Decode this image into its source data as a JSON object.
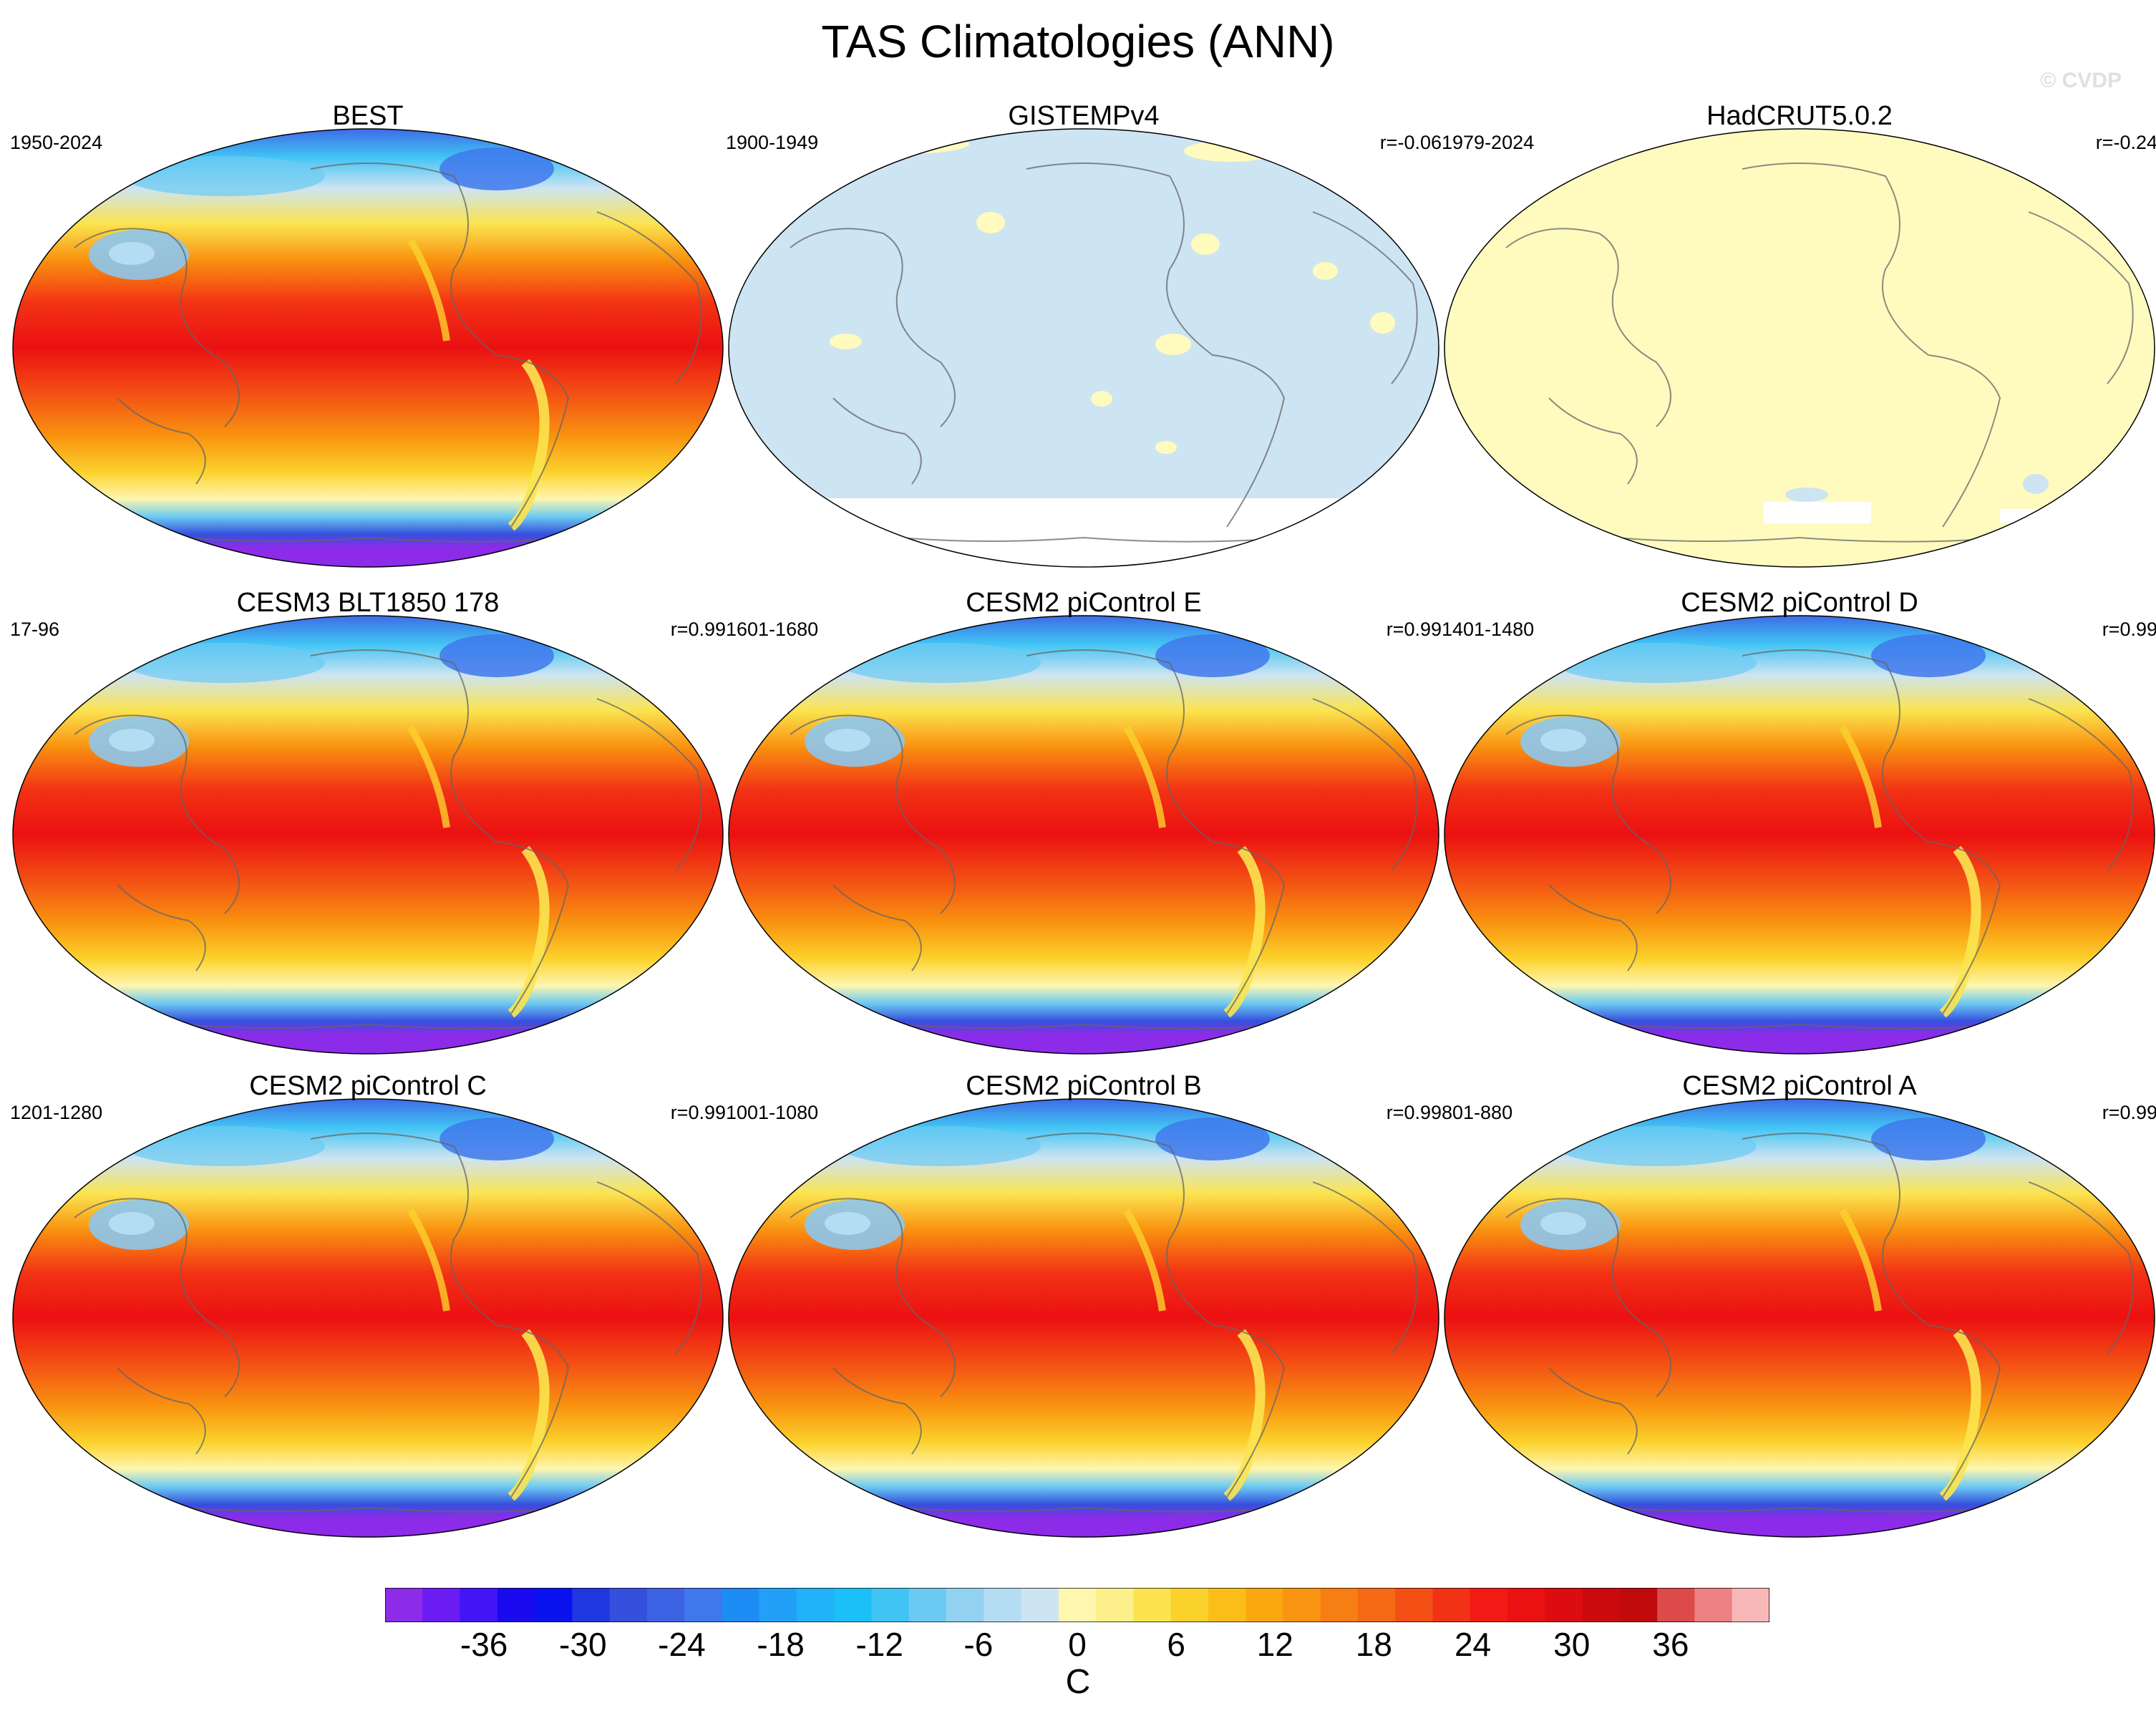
{
  "title": "TAS Climatologies (ANN)",
  "watermark": "© CVDP",
  "panels": [
    {
      "title": "BEST",
      "period": "1950-2024",
      "corr": "",
      "style": "full"
    },
    {
      "title": "GISTEMPv4",
      "period": "1900-1949",
      "corr": "r=-0.06",
      "style": "gis"
    },
    {
      "title": "HadCRUT5.0.2",
      "period": "1979-2024",
      "corr": "r=-0.24",
      "style": "had"
    },
    {
      "title": "CESM3 BLT1850 178",
      "period": "17-96",
      "corr": "r=0.99",
      "style": "full"
    },
    {
      "title": "CESM2 piControl E",
      "period": "1601-1680",
      "corr": "r=0.99",
      "style": "full"
    },
    {
      "title": "CESM2 piControl D",
      "period": "1401-1480",
      "corr": "r=0.99",
      "style": "full"
    },
    {
      "title": "CESM2 piControl C",
      "period": "1201-1280",
      "corr": "r=0.99",
      "style": "full"
    },
    {
      "title": "CESM2 piControl B",
      "period": "1001-1080",
      "corr": "r=0.99",
      "style": "full"
    },
    {
      "title": "CESM2 piControl A",
      "period": "801-880",
      "corr": "r=0.99",
      "style": "full"
    }
  ],
  "colorbar": {
    "units": "C",
    "ticks": [
      "-36",
      "-30",
      "-24",
      "-18",
      "-12",
      "-6",
      "0",
      "6",
      "12",
      "18",
      "24",
      "30",
      "36"
    ],
    "tick_values": [
      -36,
      -30,
      -24,
      -18,
      -12,
      -6,
      0,
      6,
      12,
      18,
      24,
      30,
      36
    ],
    "min": -42,
    "max": 42,
    "step": 2,
    "colors": [
      "#8c2be8",
      "#6a1cf2",
      "#4214f6",
      "#1a0af0",
      "#0a12f0",
      "#1f38e2",
      "#3450dc",
      "#3e62e4",
      "#3f78ec",
      "#1e8cf5",
      "#22a0f8",
      "#1fb2f8",
      "#1cc0f8",
      "#40c4f4",
      "#6ccaf2",
      "#92d2f0",
      "#b4dcf2",
      "#cde4f2",
      "#fff6b0",
      "#fdf08a",
      "#fbe450",
      "#fbd22c",
      "#fbbe18",
      "#fba810",
      "#f99410",
      "#f77e12",
      "#f56914",
      "#f34e14",
      "#f23214",
      "#f11a14",
      "#eb1012",
      "#dc0c10",
      "#cb0a0e",
      "#c00a0c",
      "#dc4a4a",
      "#ee8282",
      "#f9b8b8"
    ]
  },
  "chart_data": {
    "type": "heatmap",
    "variable": "TAS",
    "season": "ANN",
    "units": "C",
    "panels": [
      {
        "name": "BEST",
        "period": "1950-2024"
      },
      {
        "name": "GISTEMPv4",
        "period": "1900-1949",
        "r": -0.06
      },
      {
        "name": "HadCRUT5.0.2",
        "period": "1979-2024",
        "r": -0.24
      },
      {
        "name": "CESM3 BLT1850 178",
        "period": "17-96",
        "r": 0.99
      },
      {
        "name": "CESM2 piControl E",
        "period": "1601-1680",
        "r": 0.99
      },
      {
        "name": "CESM2 piControl D",
        "period": "1401-1480",
        "r": 0.99
      },
      {
        "name": "CESM2 piControl C",
        "period": "1201-1280",
        "r": 0.99
      },
      {
        "name": "CESM2 piControl B",
        "period": "1001-1080",
        "r": 0.99
      },
      {
        "name": "CESM2 piControl A",
        "period": "801-880",
        "r": 0.99
      }
    ],
    "colorbar_ticks": [
      -36,
      -30,
      -24,
      -18,
      -12,
      -6,
      0,
      6,
      12,
      18,
      24,
      30,
      36
    ]
  }
}
